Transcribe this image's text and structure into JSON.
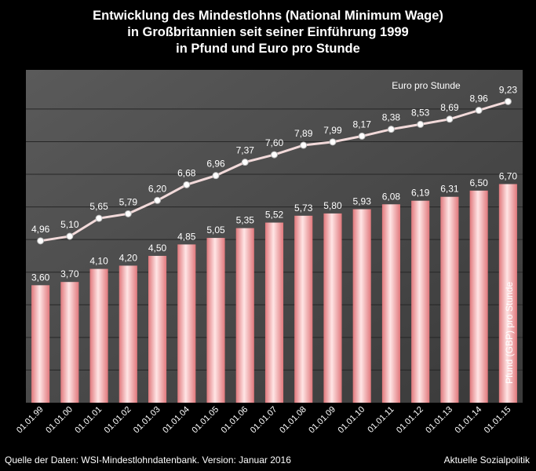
{
  "title_lines": [
    "Entwicklung des Mindestlohns  (National Minimum Wage)",
    "in Großbritannien seit seiner Einführung 1999",
    "in Pfund und Euro pro Stunde"
  ],
  "footer": {
    "source": "Quelle der Daten: WSI-Mindestlohndatenbank. Version: Januar 2016",
    "publisher": "Aktuelle Sozialpolitik"
  },
  "colors": {
    "bar": "#e0787c",
    "bar_highlight": "#ffe5e5",
    "line": "#f2dada",
    "marker": "#ffffff"
  },
  "chart_data": {
    "type": "bar",
    "categories": [
      "01.01.99",
      "01.01.00",
      "01.01.01",
      "01.01.02",
      "01.01.03",
      "01.01.04",
      "01.01.05",
      "01.01.06",
      "01.01.07",
      "01.01.08",
      "01.01.09",
      "01.01.10",
      "01.01.11",
      "01.01.12",
      "01.01.13",
      "01.01.14",
      "01.01.15"
    ],
    "bars": {
      "name": "Pfund (GBP) pro Stunde",
      "values": [
        3.6,
        3.7,
        4.1,
        4.2,
        4.5,
        4.85,
        5.05,
        5.35,
        5.52,
        5.73,
        5.8,
        5.93,
        6.08,
        6.19,
        6.31,
        6.5,
        6.7
      ],
      "labels": [
        "3,60",
        "3,70",
        "4,10",
        "4,20",
        "4,50",
        "4,85",
        "5,05",
        "5,35",
        "5,52",
        "5,73",
        "5,80",
        "5,93",
        "6,08",
        "6,19",
        "6,31",
        "6,50",
        "6,70"
      ]
    },
    "line": {
      "name": "Euro pro Stunde",
      "values": [
        4.96,
        5.1,
        5.65,
        5.79,
        6.2,
        6.68,
        6.96,
        7.37,
        7.6,
        7.89,
        7.99,
        8.17,
        8.38,
        8.53,
        8.69,
        8.96,
        9.23
      ],
      "labels": [
        "4,96",
        "5,10",
        "5,65",
        "5,79",
        "6,20",
        "6,68",
        "6,96",
        "7,37",
        "7,60",
        "7,89",
        "7,99",
        "8,17",
        "8,38",
        "8,53",
        "8,69",
        "8,96",
        "9,23"
      ]
    },
    "ylim": [
      0,
      10.2
    ],
    "grid": true,
    "legend": "inline labels"
  }
}
